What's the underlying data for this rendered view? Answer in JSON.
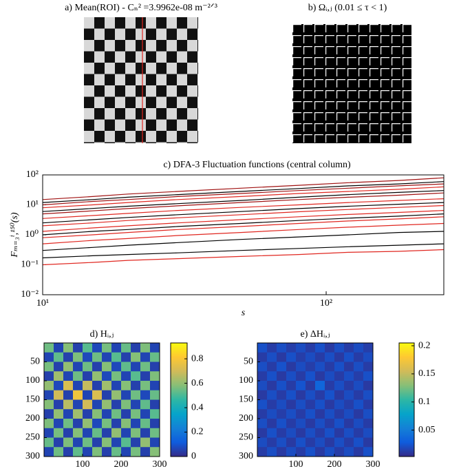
{
  "images": [
    {
      "title": "a) Mean(ROI) - Cₙ² =3.9962e-08 m⁻²ᐟ³"
    },
    {
      "title": "b) Ωᵢ,ⱼ (0.01 ≤ τ < 1)"
    }
  ],
  "chart_data": [
    {
      "type": "line",
      "title": "c) DFA-3 Fluctuation functions (central column)",
      "xlabel": "s",
      "ylabel": "Fₘ₌₃ⁱ,¹⁵⁰(s)",
      "log_x": true,
      "log_y": true,
      "xlim": [
        10,
        260
      ],
      "ylim": [
        0.01,
        100
      ],
      "xticks": [
        {
          "value": 10,
          "label": "10¹"
        },
        {
          "value": 100,
          "label": "10²"
        }
      ],
      "yticks": [
        {
          "value": 0.01,
          "label": "10⁻²"
        },
        {
          "value": 0.1,
          "label": "10⁻¹"
        },
        {
          "value": 1,
          "label": "10⁰"
        },
        {
          "value": 10,
          "label": "10¹"
        },
        {
          "value": 100,
          "label": "10²"
        }
      ],
      "x": [
        10,
        15,
        20,
        30,
        50,
        80,
        120,
        180,
        260
      ],
      "series": [
        {
          "color": "#000000",
          "values": [
            0.17,
            0.2,
            0.22,
            0.25,
            0.3,
            0.35,
            0.4,
            0.45,
            0.5
          ]
        },
        {
          "color": "#e0261f",
          "values": [
            0.1,
            0.12,
            0.14,
            0.16,
            0.19,
            0.22,
            0.26,
            0.28,
            0.32
          ]
        },
        {
          "color": "#000000",
          "values": [
            0.3,
            0.38,
            0.45,
            0.55,
            0.7,
            0.85,
            1.0,
            1.2,
            1.3
          ]
        },
        {
          "color": "#e0261f",
          "values": [
            0.5,
            0.65,
            0.75,
            0.95,
            1.2,
            1.5,
            1.8,
            2.1,
            2.4
          ]
        },
        {
          "color": "#e0261f",
          "values": [
            0.8,
            1.0,
            1.2,
            1.5,
            1.9,
            2.4,
            2.9,
            3.4,
            4.0
          ]
        },
        {
          "color": "#000000",
          "values": [
            1.0,
            1.3,
            1.5,
            1.9,
            2.4,
            3.0,
            3.6,
            4.2,
            5.0
          ]
        },
        {
          "color": "#e0261f",
          "values": [
            1.3,
            1.7,
            2.0,
            2.5,
            3.2,
            4.0,
            4.8,
            5.6,
            6.5
          ]
        },
        {
          "color": "#e0261f",
          "values": [
            2.0,
            2.5,
            3.0,
            3.7,
            4.7,
            5.9,
            7.0,
            8.2,
            9.5
          ]
        },
        {
          "color": "#000000",
          "values": [
            2.5,
            3.2,
            3.8,
            4.7,
            6.0,
            7.5,
            9.0,
            10.5,
            12
          ]
        },
        {
          "color": "#e0261f",
          "values": [
            3.5,
            4.4,
            5.2,
            6.5,
            8.2,
            10,
            12,
            14,
            16
          ]
        },
        {
          "color": "#a01010",
          "values": [
            5,
            6.3,
            7.5,
            9.3,
            12,
            15,
            18,
            21,
            25
          ]
        },
        {
          "color": "#000000",
          "values": [
            6,
            7.6,
            9,
            11,
            14,
            18,
            22,
            26,
            30
          ]
        },
        {
          "color": "#e0261f",
          "values": [
            8,
            10,
            12,
            15,
            19,
            24,
            28,
            33,
            40
          ]
        },
        {
          "color": "#a01010",
          "values": [
            10,
            13,
            15,
            19,
            24,
            30,
            36,
            43,
            50
          ]
        },
        {
          "color": "#000000",
          "values": [
            12,
            15,
            18,
            22,
            28,
            35,
            43,
            50,
            60
          ]
        },
        {
          "color": "#a01010",
          "values": [
            15,
            19,
            23,
            28,
            36,
            45,
            55,
            65,
            80
          ]
        }
      ]
    },
    {
      "type": "heatmap",
      "title": "d) Hᵢ,ⱼ",
      "xlim": [
        0,
        300
      ],
      "ylim": [
        0,
        300
      ],
      "y_reversed": true,
      "xticks": [
        100,
        200,
        300
      ],
      "yticks": [
        50,
        100,
        150,
        200,
        250,
        300
      ],
      "clim": [
        0,
        0.93
      ],
      "cticks": [
        0,
        0.2,
        0.4,
        0.6,
        0.8
      ],
      "colormap": [
        "#352a87",
        "#0f5cdd",
        "#1481d6",
        "#06a4ca",
        "#2eb7a4",
        "#87bf77",
        "#d1bb59",
        "#fec832",
        "#f9fb0e"
      ],
      "z": [
        [
          0.55,
          0.06,
          0.58,
          0.05,
          0.52,
          0.07,
          0.56,
          0.06,
          0.54,
          0.05,
          0.57,
          0.06
        ],
        [
          0.06,
          0.53,
          0.05,
          0.57,
          0.07,
          0.55,
          0.06,
          0.52,
          0.05,
          0.58,
          0.06,
          0.54
        ],
        [
          0.56,
          0.05,
          0.6,
          0.06,
          0.55,
          0.05,
          0.58,
          0.07,
          0.53,
          0.06,
          0.55,
          0.05
        ],
        [
          0.05,
          0.62,
          0.06,
          0.55,
          0.05,
          0.6,
          0.07,
          0.56,
          0.06,
          0.52,
          0.05,
          0.57
        ],
        [
          0.6,
          0.07,
          0.72,
          0.06,
          0.68,
          0.05,
          0.62,
          0.06,
          0.58,
          0.05,
          0.56,
          0.06
        ],
        [
          0.06,
          0.7,
          0.05,
          0.78,
          0.06,
          0.72,
          0.05,
          0.6,
          0.06,
          0.55,
          0.07,
          0.54
        ],
        [
          0.58,
          0.05,
          0.66,
          0.06,
          0.7,
          0.06,
          0.6,
          0.05,
          0.57,
          0.06,
          0.53,
          0.05
        ],
        [
          0.05,
          0.6,
          0.06,
          0.62,
          0.05,
          0.58,
          0.06,
          0.55,
          0.05,
          0.56,
          0.06,
          0.52
        ],
        [
          0.57,
          0.06,
          0.55,
          0.05,
          0.6,
          0.07,
          0.56,
          0.05,
          0.58,
          0.06,
          0.54,
          0.05
        ],
        [
          0.06,
          0.56,
          0.05,
          0.58,
          0.06,
          0.54,
          0.05,
          0.6,
          0.06,
          0.57,
          0.05,
          0.55
        ],
        [
          0.54,
          0.05,
          0.57,
          0.06,
          0.55,
          0.05,
          0.58,
          0.06,
          0.52,
          0.05,
          0.6,
          0.06
        ],
        [
          0.06,
          0.55,
          0.05,
          0.53,
          0.06,
          0.57,
          0.05,
          0.54,
          0.06,
          0.56,
          0.05,
          0.58
        ]
      ]
    },
    {
      "type": "heatmap",
      "title": "e) ΔHᵢ,ⱼ",
      "xlim": [
        0,
        300
      ],
      "ylim": [
        0,
        300
      ],
      "y_reversed": true,
      "xticks": [
        100,
        200,
        300
      ],
      "yticks": [
        50,
        100,
        150,
        200,
        250,
        300
      ],
      "clim": [
        0.003,
        0.205
      ],
      "cticks": [
        0.05,
        0.1,
        0.15,
        0.2
      ],
      "colormap": [
        "#352a87",
        "#0f5cdd",
        "#1481d6",
        "#06a4ca",
        "#2eb7a4",
        "#87bf77",
        "#d1bb59",
        "#fec832",
        "#f9fb0e"
      ],
      "z": [
        [
          0.022,
          0.012,
          0.021,
          0.013,
          0.02,
          0.012,
          0.022,
          0.011,
          0.021,
          0.012,
          0.02,
          0.013
        ],
        [
          0.012,
          0.021,
          0.011,
          0.022,
          0.013,
          0.02,
          0.012,
          0.021,
          0.011,
          0.022,
          0.012,
          0.02
        ],
        [
          0.021,
          0.012,
          0.023,
          0.011,
          0.02,
          0.013,
          0.021,
          0.012,
          0.022,
          0.011,
          0.021,
          0.012
        ],
        [
          0.012,
          0.022,
          0.011,
          0.021,
          0.012,
          0.023,
          0.011,
          0.02,
          0.012,
          0.021,
          0.013,
          0.022
        ],
        [
          0.02,
          0.011,
          0.022,
          0.012,
          0.024,
          0.011,
          0.035,
          0.012,
          0.021,
          0.012,
          0.02,
          0.011
        ],
        [
          0.011,
          0.021,
          0.012,
          0.022,
          0.011,
          0.021,
          0.012,
          0.023,
          0.011,
          0.02,
          0.012,
          0.021
        ],
        [
          0.022,
          0.012,
          0.02,
          0.011,
          0.021,
          0.012,
          0.022,
          0.011,
          0.02,
          0.013,
          0.022,
          0.012
        ],
        [
          0.012,
          0.02,
          0.013,
          0.021,
          0.012,
          0.022,
          0.011,
          0.021,
          0.012,
          0.02,
          0.011,
          0.021
        ],
        [
          0.021,
          0.011,
          0.022,
          0.012,
          0.02,
          0.011,
          0.021,
          0.012,
          0.022,
          0.011,
          0.02,
          0.012
        ],
        [
          0.011,
          0.022,
          0.012,
          0.02,
          0.011,
          0.021,
          0.012,
          0.022,
          0.011,
          0.021,
          0.012,
          0.02
        ],
        [
          0.02,
          0.012,
          0.021,
          0.011,
          0.022,
          0.012,
          0.02,
          0.011,
          0.021,
          0.012,
          0.022,
          0.011
        ],
        [
          0.012,
          0.021,
          0.011,
          0.02,
          0.012,
          0.022,
          0.011,
          0.021,
          0.012,
          0.02,
          0.011,
          0.022
        ]
      ]
    }
  ]
}
